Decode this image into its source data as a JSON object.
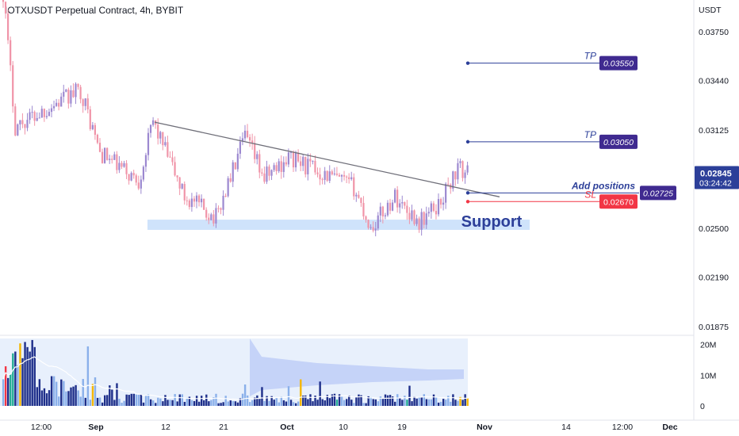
{
  "header": {
    "title": "IOTXUSDT Perpetual Contract, 4h, BYBIT"
  },
  "price_axis": {
    "unit": "USDT",
    "ticks": [
      "0.03750",
      "0.03440",
      "0.03125",
      "0.02845",
      "0.02500",
      "0.02190",
      "0.01875"
    ],
    "current": {
      "price": "0.02845",
      "countdown": "03:24:42"
    }
  },
  "volume_axis": {
    "ticks": [
      "20M",
      "10M",
      "0"
    ]
  },
  "time_axis": {
    "labels": [
      "12:00",
      "Sep",
      "12",
      "21",
      "Oct",
      "10",
      "19",
      "Nov",
      "14",
      "12:00",
      "Dec"
    ]
  },
  "annotations": {
    "tp1_label": "TP",
    "tp1_price": "0.03550",
    "tp2_label": "TP",
    "tp2_price": "0.03050",
    "entry_label": "Add positions",
    "entry_price": "0.02725",
    "sl_label": "SL",
    "sl_price": "0.02670",
    "zone_label": "Support"
  },
  "colors": {
    "up": "#9c88d0",
    "down": "#f094a8",
    "accent": "#3f2a90",
    "blue_line": "#2c3f99",
    "sl_red": "#f23645",
    "zone": "#cfe3fb",
    "vol_dark": "#1e2f8a",
    "vol_light": "#8ab0ea",
    "band": "#c5d3f8",
    "band_bg": "#e8f0fc"
  },
  "chart_data": {
    "type": "candlestick",
    "title": "IOTXUSDT Perpetual Contract, 4h, BYBIT",
    "yunit": "USDT",
    "ylim": [
      0.0175,
      0.0415
    ],
    "x_categories": [
      "12:00",
      "Sep",
      "12",
      "21",
      "Oct",
      "10",
      "19",
      "Nov",
      "14",
      "12:00",
      "Dec"
    ],
    "price_path": [
      {
        "x": "start",
        "close": 0.04
      },
      {
        "x": "~Aug 25",
        "close": 0.0315
      },
      {
        "x": "~Aug 31",
        "close": 0.0338
      },
      {
        "x": "Sep",
        "close": 0.0298
      },
      {
        "x": "~Sep 9",
        "close": 0.028
      },
      {
        "x": "~Sep 10",
        "close": 0.0318
      },
      {
        "x": "~Sep 14",
        "close": 0.027
      },
      {
        "x": "~Sep 19",
        "close": 0.0257
      },
      {
        "x": "~Sep 24",
        "close": 0.0308
      },
      {
        "x": "~Sep 28",
        "close": 0.0282
      },
      {
        "x": "Oct",
        "close": 0.0295
      },
      {
        "x": "~Oct 10",
        "close": 0.0276
      },
      {
        "x": "~Oct 13",
        "close": 0.025
      },
      {
        "x": "~Oct 17",
        "close": 0.027
      },
      {
        "x": "~Oct 23",
        "close": 0.0254
      },
      {
        "x": "~Oct 25",
        "close": 0.0265
      },
      {
        "x": "~Oct 27",
        "close": 0.0288
      },
      {
        "x": "last",
        "close": 0.02845
      }
    ],
    "levels": [
      {
        "name": "TP",
        "price": 0.0355
      },
      {
        "name": "TP",
        "price": 0.0305
      },
      {
        "name": "Add positions",
        "price": 0.02725
      },
      {
        "name": "SL",
        "price": 0.0267
      }
    ],
    "support_zone": [
      0.0249,
      0.02555
    ],
    "trendline": [
      {
        "x": "~Sep 10",
        "price": 0.03175
      },
      {
        "x": "~Oct 30",
        "price": 0.027
      }
    ],
    "volume": {
      "ylim": [
        0,
        22000000
      ],
      "ticks": [
        0,
        10000000,
        20000000
      ]
    }
  }
}
